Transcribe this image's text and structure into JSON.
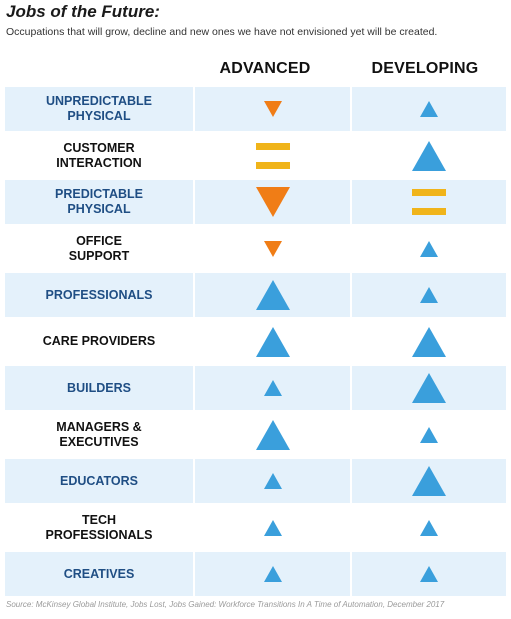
{
  "title": "Jobs of the Future:",
  "subtitle": "Occupations that will grow, decline and new ones we have not envisioned yet will be created.",
  "columns": {
    "advanced": "ADVANCED",
    "developing": "DEVELOPING"
  },
  "colors": {
    "up": "#3a9fdc",
    "down": "#f07d16",
    "flat": "#f0b41a",
    "row_alt": "#e4f1fb",
    "label_blue": "#1f4e84"
  },
  "rows": [
    {
      "label": "UNPREDICTABLE\nPHYSICAL",
      "label_color": "blue",
      "advanced": {
        "dir": "down",
        "size": "small"
      },
      "developing": {
        "dir": "up",
        "size": "small"
      }
    },
    {
      "label": "CUSTOMER\nINTERACTION",
      "label_color": "black",
      "advanced": {
        "dir": "flat",
        "size": "large"
      },
      "developing": {
        "dir": "up",
        "size": "large"
      }
    },
    {
      "label": "PREDICTABLE\nPHYSICAL",
      "label_color": "blue",
      "advanced": {
        "dir": "down",
        "size": "large"
      },
      "developing": {
        "dir": "flat",
        "size": "large"
      }
    },
    {
      "label": "OFFICE\nSUPPORT",
      "label_color": "black",
      "advanced": {
        "dir": "down",
        "size": "small"
      },
      "developing": {
        "dir": "up",
        "size": "small"
      }
    },
    {
      "label": "PROFESSIONALS",
      "label_color": "blue",
      "advanced": {
        "dir": "up",
        "size": "large"
      },
      "developing": {
        "dir": "up",
        "size": "small"
      }
    },
    {
      "label": "CARE PROVIDERS",
      "label_color": "black",
      "advanced": {
        "dir": "up",
        "size": "large"
      },
      "developing": {
        "dir": "up",
        "size": "large"
      }
    },
    {
      "label": "BUILDERS",
      "label_color": "blue",
      "advanced": {
        "dir": "up",
        "size": "small"
      },
      "developing": {
        "dir": "up",
        "size": "large"
      }
    },
    {
      "label": "MANAGERS &\nEXECUTIVES",
      "label_color": "black",
      "advanced": {
        "dir": "up",
        "size": "large"
      },
      "developing": {
        "dir": "up",
        "size": "small"
      }
    },
    {
      "label": "EDUCATORS",
      "label_color": "blue",
      "advanced": {
        "dir": "up",
        "size": "small"
      },
      "developing": {
        "dir": "up",
        "size": "large"
      }
    },
    {
      "label": "TECH\nPROFESSIONALS",
      "label_color": "black",
      "advanced": {
        "dir": "up",
        "size": "small"
      },
      "developing": {
        "dir": "up",
        "size": "small"
      }
    },
    {
      "label": "CREATIVES",
      "label_color": "blue",
      "advanced": {
        "dir": "up",
        "size": "small"
      },
      "developing": {
        "dir": "up",
        "size": "small"
      }
    }
  ],
  "source": "Source:  McKinsey Global Institute, Jobs Lost, Jobs Gained: Workforce Transitions In A Time of Automation, December 2017"
}
